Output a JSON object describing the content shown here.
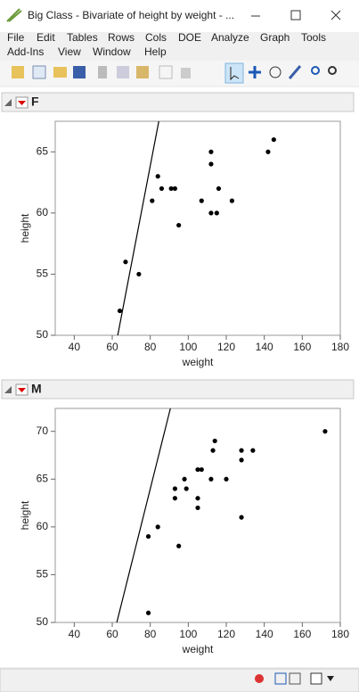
{
  "window": {
    "title": "Big Class - Bivariate of height by weight - ...",
    "menu_rows": [
      [
        "File",
        "Edit",
        "Tables",
        "Rows",
        "Cols",
        "DOE",
        "Analyze",
        "Graph",
        "Tools"
      ],
      [
        "Add-Ins",
        "View",
        "Window",
        "Help"
      ]
    ]
  },
  "chart_data": [
    {
      "type": "scatter",
      "title": "F",
      "xlabel": "weight",
      "ylabel": "height",
      "x": [
        64,
        67,
        74,
        81,
        84,
        86,
        91,
        93,
        95,
        107,
        112,
        112,
        112,
        115,
        116,
        123,
        142,
        145
      ],
      "y": [
        52,
        56,
        55,
        61,
        63,
        62,
        62,
        62,
        59,
        61,
        65,
        64,
        60,
        60,
        62,
        61,
        65,
        66
      ],
      "color": "#000000",
      "fit_line": {
        "x": [
          62.9,
          84.5
        ],
        "y": [
          50,
          67.5
        ]
      },
      "xlim": [
        30,
        180
      ],
      "ylim": [
        50,
        67.5
      ],
      "xticks": [
        40,
        60,
        80,
        100,
        120,
        140,
        160,
        180
      ],
      "yticks": [
        50,
        55,
        60,
        65
      ]
    },
    {
      "type": "scatter",
      "title": "M",
      "xlabel": "weight",
      "ylabel": "height",
      "x": [
        79,
        79,
        84,
        93,
        93,
        95,
        98,
        99,
        105,
        105,
        105,
        107,
        112,
        113,
        114,
        120,
        128,
        128,
        128,
        134,
        172
      ],
      "y": [
        51,
        59,
        60,
        64,
        63,
        58,
        65,
        64,
        62,
        66,
        63,
        66,
        65,
        68,
        69,
        65,
        68,
        67,
        61,
        68,
        70
      ],
      "color": "#000000",
      "fit_line": {
        "x": [
          62.4,
          90.6
        ],
        "y": [
          50,
          72.4
        ]
      },
      "xlim": [
        30,
        180
      ],
      "ylim": [
        50,
        72.4
      ],
      "xticks": [
        40,
        60,
        80,
        100,
        120,
        140,
        160,
        180
      ],
      "yticks": [
        50,
        55,
        60,
        65,
        70
      ]
    }
  ]
}
